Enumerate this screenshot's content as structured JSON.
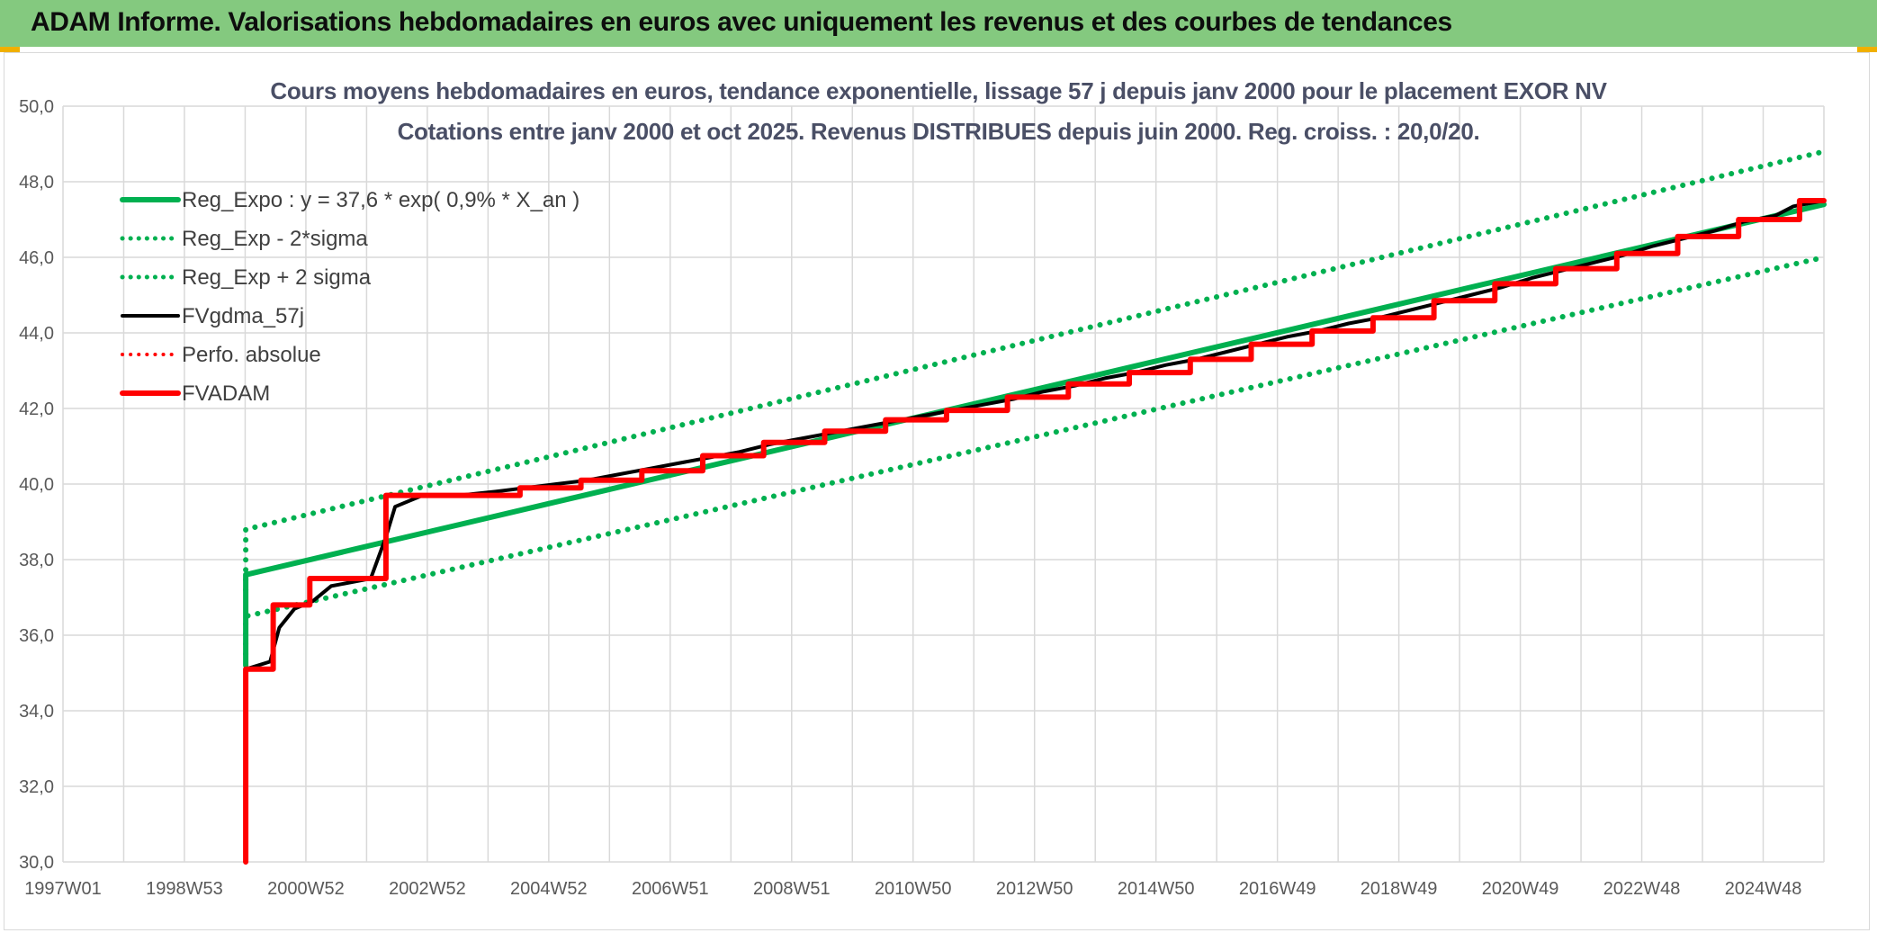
{
  "banner": {
    "title": "ADAM Informe. Valorisations hebdomadaires en euros avec uniquement les revenus et des courbes de tendances",
    "color": "#84c97f"
  },
  "chart_data": {
    "type": "line",
    "title": "Cours moyens hebdomadaires en euros, tendance exponentielle, lissage 57 j depuis janv 2000 pour le placement EXOR NV",
    "subtitle": "Cotations entre janv 2000 et oct 2025. Revenus DISTRIBUES depuis juin 2000. Reg. croiss. : 20,0/20.",
    "xlabel": "",
    "ylabel": "",
    "x_tick_labels": [
      "1997W01",
      "1998W53",
      "2000W52",
      "2002W52",
      "2004W52",
      "2006W51",
      "2008W51",
      "2010W50",
      "2012W50",
      "2014W50",
      "2016W49",
      "2018W49",
      "2020W49",
      "2022W48",
      "2024W48"
    ],
    "xlim": [
      1997.0,
      2025.9
    ],
    "ylim": [
      30,
      50
    ],
    "y_ticks": [
      "30,0",
      "32,0",
      "34,0",
      "36,0",
      "38,0",
      "40,0",
      "42,0",
      "44,0",
      "46,0",
      "48,0",
      "50,0"
    ],
    "grid": true,
    "legend_position": "top-left",
    "series": [
      {
        "name": "Reg_Expo : y = 37,6 * exp( 0,9% *  X_an )",
        "color": "#00b050",
        "style": "solid",
        "x": [
          2000.0,
          2000.0,
          2025.9
        ],
        "y": [
          35.2,
          37.6,
          47.4
        ]
      },
      {
        "name": "Reg_Exp - 2*sigma",
        "color": "#00b050",
        "style": "dotted",
        "x": [
          2000.0,
          2000.0,
          2025.9
        ],
        "y": [
          37.2,
          38.8,
          48.8
        ]
      },
      {
        "name": "Reg_Exp + 2 sigma",
        "color": "#00b050",
        "style": "dotted",
        "x": [
          2000.0,
          2000.0,
          2025.9
        ],
        "y": [
          35.5,
          36.5,
          46.0
        ]
      },
      {
        "name": "FVgdma_57j",
        "color": "#000000",
        "style": "solid",
        "x": [
          2000.0,
          2000.4,
          2000.55,
          2000.8,
          2001.1,
          2001.4,
          2002.05,
          2002.3,
          2002.45,
          2002.9,
          2003.5,
          2004.1,
          2004.6,
          2005.1,
          2005.6,
          2006.1,
          2006.6,
          2007.1,
          2007.6,
          2008.1,
          2008.6,
          2009.1,
          2009.6,
          2010.1,
          2010.6,
          2011.1,
          2011.6,
          2012.1,
          2012.6,
          2013.1,
          2013.6,
          2014.1,
          2014.6,
          2015.1,
          2015.6,
          2016.1,
          2016.6,
          2017.1,
          2017.6,
          2018.1,
          2018.6,
          2019.1,
          2019.6,
          2020.1,
          2020.6,
          2021.1,
          2021.6,
          2022.1,
          2022.6,
          2023.1,
          2023.6,
          2024.1,
          2024.6,
          2025.1,
          2025.4,
          2025.9
        ],
        "y": [
          35.1,
          35.3,
          36.2,
          36.7,
          36.9,
          37.3,
          37.5,
          38.6,
          39.4,
          39.7,
          39.7,
          39.8,
          39.9,
          40.0,
          40.1,
          40.25,
          40.4,
          40.55,
          40.7,
          40.85,
          41.05,
          41.2,
          41.35,
          41.5,
          41.65,
          41.8,
          41.95,
          42.1,
          42.25,
          42.45,
          42.6,
          42.8,
          42.95,
          43.15,
          43.3,
          43.5,
          43.7,
          43.9,
          44.05,
          44.25,
          44.4,
          44.6,
          44.8,
          45.0,
          45.2,
          45.45,
          45.65,
          45.85,
          46.05,
          46.3,
          46.5,
          46.7,
          46.95,
          47.1,
          47.35,
          47.5
        ]
      },
      {
        "name": "Perfo. absolue",
        "color": "#ff0000",
        "style": "dotted",
        "x": [],
        "y": []
      },
      {
        "name": "FVADAM",
        "color": "#ff0000",
        "style": "solid",
        "x": [
          2000.0,
          2000.0,
          2000.45,
          2000.45,
          2001.05,
          2001.05,
          2002.3,
          2002.3,
          2004.5,
          2004.5,
          2005.5,
          2005.5,
          2006.5,
          2006.5,
          2007.5,
          2007.5,
          2008.5,
          2008.5,
          2009.5,
          2009.5,
          2010.5,
          2010.5,
          2011.5,
          2011.5,
          2012.5,
          2012.5,
          2013.5,
          2013.5,
          2014.5,
          2014.5,
          2015.5,
          2015.5,
          2016.5,
          2016.5,
          2017.5,
          2017.5,
          2018.5,
          2018.5,
          2019.5,
          2019.5,
          2020.5,
          2020.5,
          2021.5,
          2021.5,
          2022.5,
          2022.5,
          2023.5,
          2023.5,
          2024.5,
          2024.5,
          2025.5,
          2025.5,
          2025.9
        ],
        "y": [
          30.0,
          35.1,
          35.1,
          36.8,
          36.8,
          37.5,
          37.5,
          39.7,
          39.7,
          39.9,
          39.9,
          40.1,
          40.1,
          40.35,
          40.35,
          40.75,
          40.75,
          41.1,
          41.1,
          41.4,
          41.4,
          41.7,
          41.7,
          41.95,
          41.95,
          42.3,
          42.3,
          42.65,
          42.65,
          42.95,
          42.95,
          43.3,
          43.3,
          43.7,
          43.7,
          44.05,
          44.05,
          44.4,
          44.4,
          44.85,
          44.85,
          45.3,
          45.3,
          45.7,
          45.7,
          46.1,
          46.1,
          46.55,
          46.55,
          47.0,
          47.0,
          47.5,
          47.5
        ]
      }
    ]
  }
}
